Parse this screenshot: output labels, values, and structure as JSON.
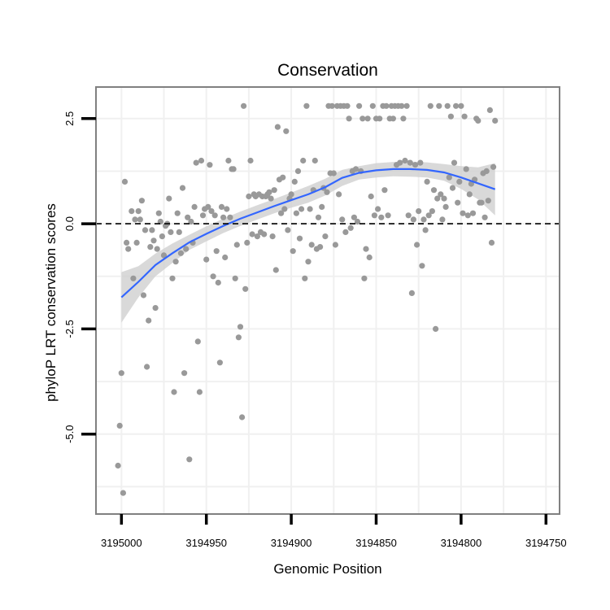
{
  "chart_data": {
    "type": "scatter",
    "title": "Conservation",
    "xlabel": "Genomic Position",
    "ylabel": "phyloP LRT conservation scores",
    "x_reversed": true,
    "xlim": [
      3195015,
      3194742
    ],
    "ylim": [
      -6.9,
      3.25
    ],
    "x_ticks": [
      3195000,
      3194950,
      3194900,
      3194850,
      3194800,
      3194750
    ],
    "x_tick_labels": [
      "3195000",
      "3194950",
      "3194900",
      "3194850",
      "3194800",
      "3194750"
    ],
    "y_ticks": [
      2.5,
      0,
      -2.5,
      -5
    ],
    "y_tick_labels": [
      "2.5",
      "0.0",
      "-2.5",
      "-5.0"
    ],
    "reference_line_y": 0,
    "grid": true,
    "colors": {
      "points": "#999999",
      "smooth": "#3366ff",
      "ribbon": "#d0d0d0",
      "panel_border": "#808080",
      "grid": "#f0f0f0"
    },
    "points": [
      [
        3195002,
        -5.75
      ],
      [
        3195001,
        -4.8
      ],
      [
        3195000,
        -3.55
      ],
      [
        3194999,
        -6.4
      ],
      [
        3194998,
        1.0
      ],
      [
        3194997,
        -0.45
      ],
      [
        3194996,
        -0.6
      ],
      [
        3194994,
        0.3
      ],
      [
        3194993,
        -1.3
      ],
      [
        3194992,
        0.1
      ],
      [
        3194991,
        -0.45
      ],
      [
        3194990,
        0.3
      ],
      [
        3194989,
        0.1
      ],
      [
        3194988,
        0.55
      ],
      [
        3194987,
        -1.7
      ],
      [
        3194986,
        -0.15
      ],
      [
        3194985,
        -3.4
      ],
      [
        3194984,
        -2.3
      ],
      [
        3194983,
        -0.55
      ],
      [
        3194982,
        -0.15
      ],
      [
        3194981,
        -0.4
      ],
      [
        3194980,
        -2.0
      ],
      [
        3194979,
        -0.6
      ],
      [
        3194978,
        0.25
      ],
      [
        3194977,
        0.05
      ],
      [
        3194976,
        -0.3
      ],
      [
        3194975,
        -0.75
      ],
      [
        3194974,
        -0.05
      ],
      [
        3194973,
        0.0
      ],
      [
        3194972,
        0.6
      ],
      [
        3194971,
        -0.2
      ],
      [
        3194970,
        -1.3
      ],
      [
        3194969,
        -4.0
      ],
      [
        3194968,
        -0.9
      ],
      [
        3194967,
        0.25
      ],
      [
        3194966,
        -0.2
      ],
      [
        3194965,
        -0.7
      ],
      [
        3194964,
        0.85
      ],
      [
        3194963,
        -3.55
      ],
      [
        3194962,
        -0.6
      ],
      [
        3194961,
        0.15
      ],
      [
        3194960,
        -5.6
      ],
      [
        3194959,
        0.05
      ],
      [
        3194958,
        -0.45
      ],
      [
        3194957,
        0.4
      ],
      [
        3194956,
        1.45
      ],
      [
        3194955,
        -2.8
      ],
      [
        3194954,
        -4.0
      ],
      [
        3194953,
        1.5
      ],
      [
        3194952,
        0.2
      ],
      [
        3194951,
        0.35
      ],
      [
        3194950,
        -0.85
      ],
      [
        3194949,
        0.4
      ],
      [
        3194948,
        1.4
      ],
      [
        3194947,
        0.3
      ],
      [
        3194946,
        -1.25
      ],
      [
        3194945,
        0.2
      ],
      [
        3194944,
        -0.65
      ],
      [
        3194943,
        -1.4
      ],
      [
        3194942,
        -3.3
      ],
      [
        3194941,
        0.4
      ],
      [
        3194940,
        0.15
      ],
      [
        3194939,
        -0.8
      ],
      [
        3194938,
        0.35
      ],
      [
        3194937,
        1.5
      ],
      [
        3194936,
        0.15
      ],
      [
        3194935,
        1.3
      ],
      [
        3194934,
        1.3
      ],
      [
        3194933,
        -1.3
      ],
      [
        3194932,
        -0.5
      ],
      [
        3194931,
        -2.7
      ],
      [
        3194930,
        -2.45
      ],
      [
        3194929,
        -4.6
      ],
      [
        3194928,
        2.8
      ],
      [
        3194927,
        -1.55
      ],
      [
        3194926,
        -0.45
      ],
      [
        3194925,
        0.65
      ],
      [
        3194924,
        1.5
      ],
      [
        3194923,
        -0.25
      ],
      [
        3194922,
        0.7
      ],
      [
        3194921,
        0.65
      ],
      [
        3194920,
        -0.3
      ],
      [
        3194919,
        0.7
      ],
      [
        3194918,
        -0.2
      ],
      [
        3194917,
        0.65
      ],
      [
        3194916,
        -0.25
      ],
      [
        3194915,
        0.65
      ],
      [
        3194914,
        0.7
      ],
      [
        3194913,
        0.75
      ],
      [
        3194912,
        0.6
      ],
      [
        3194911,
        -0.3
      ],
      [
        3194910,
        0.8
      ],
      [
        3194909,
        -1.1
      ],
      [
        3194908,
        2.3
      ],
      [
        3194907,
        1.05
      ],
      [
        3194906,
        0.25
      ],
      [
        3194905,
        1.1
      ],
      [
        3194904,
        0.35
      ],
      [
        3194903,
        2.2
      ],
      [
        3194902,
        -0.15
      ],
      [
        3194901,
        0.6
      ],
      [
        3194900,
        0.7
      ],
      [
        3194899,
        -0.65
      ],
      [
        3194898,
        1.0
      ],
      [
        3194897,
        0.25
      ],
      [
        3194896,
        1.25
      ],
      [
        3194895,
        -0.35
      ],
      [
        3194894,
        0.35
      ],
      [
        3194893,
        1.5
      ],
      [
        3194892,
        -1.3
      ],
      [
        3194891,
        2.8
      ],
      [
        3194890,
        -0.9
      ],
      [
        3194889,
        0.35
      ],
      [
        3194888,
        -0.5
      ],
      [
        3194887,
        0.8
      ],
      [
        3194886,
        1.5
      ],
      [
        3194885,
        -0.6
      ],
      [
        3194884,
        0.15
      ],
      [
        3194883,
        -0.55
      ],
      [
        3194882,
        0.4
      ],
      [
        3194881,
        0.85
      ],
      [
        3194880,
        -0.3
      ],
      [
        3194879,
        0.75
      ],
      [
        3194878,
        2.8
      ],
      [
        3194877,
        1.2
      ],
      [
        3194876,
        2.8
      ],
      [
        3194875,
        1.2
      ],
      [
        3194874,
        -0.5
      ],
      [
        3194873,
        2.8
      ],
      [
        3194872,
        0.7
      ],
      [
        3194871,
        2.8
      ],
      [
        3194870,
        0.1
      ],
      [
        3194869,
        2.8
      ],
      [
        3194868,
        -0.2
      ],
      [
        3194867,
        2.8
      ],
      [
        3194866,
        2.5
      ],
      [
        3194865,
        -0.1
      ],
      [
        3194864,
        1.25
      ],
      [
        3194863,
        0.15
      ],
      [
        3194862,
        1.3
      ],
      [
        3194861,
        0.05
      ],
      [
        3194860,
        2.8
      ],
      [
        3194859,
        1.25
      ],
      [
        3194858,
        2.5
      ],
      [
        3194857,
        -1.3
      ],
      [
        3194856,
        -0.6
      ],
      [
        3194855,
        2.5
      ],
      [
        3194854,
        -0.8
      ],
      [
        3194853,
        0.65
      ],
      [
        3194852,
        2.8
      ],
      [
        3194851,
        0.2
      ],
      [
        3194850,
        2.5
      ],
      [
        3194849,
        0.35
      ],
      [
        3194848,
        2.5
      ],
      [
        3194847,
        0.15
      ],
      [
        3194846,
        2.8
      ],
      [
        3194845,
        0.8
      ],
      [
        3194844,
        2.8
      ],
      [
        3194843,
        0.2
      ],
      [
        3194842,
        2.5
      ],
      [
        3194841,
        2.8
      ],
      [
        3194840,
        2.5
      ],
      [
        3194839,
        2.8
      ],
      [
        3194838,
        1.4
      ],
      [
        3194837,
        2.8
      ],
      [
        3194836,
        1.45
      ],
      [
        3194835,
        2.8
      ],
      [
        3194834,
        2.5
      ],
      [
        3194833,
        1.5
      ],
      [
        3194832,
        2.8
      ],
      [
        3194831,
        0.2
      ],
      [
        3194830,
        1.45
      ],
      [
        3194829,
        -1.65
      ],
      [
        3194828,
        0.1
      ],
      [
        3194827,
        1.4
      ],
      [
        3194826,
        -0.5
      ],
      [
        3194825,
        0.3
      ],
      [
        3194824,
        1.45
      ],
      [
        3194823,
        -1.0
      ],
      [
        3194822,
        0.1
      ],
      [
        3194821,
        -0.15
      ],
      [
        3194820,
        1.0
      ],
      [
        3194819,
        0.2
      ],
      [
        3194818,
        2.8
      ],
      [
        3194817,
        0.3
      ],
      [
        3194816,
        0.8
      ],
      [
        3194815,
        -2.5
      ],
      [
        3194814,
        0.6
      ],
      [
        3194813,
        2.8
      ],
      [
        3194812,
        0.7
      ],
      [
        3194811,
        0.1
      ],
      [
        3194810,
        0.6
      ],
      [
        3194809,
        0.4
      ],
      [
        3194808,
        2.8
      ],
      [
        3194807,
        1.1
      ],
      [
        3194806,
        2.55
      ],
      [
        3194805,
        0.85
      ],
      [
        3194804,
        1.45
      ],
      [
        3194803,
        2.8
      ],
      [
        3194802,
        0.5
      ],
      [
        3194801,
        1.0
      ],
      [
        3194800,
        2.8
      ],
      [
        3194799,
        0.25
      ],
      [
        3194798,
        2.55
      ],
      [
        3194797,
        1.3
      ],
      [
        3194796,
        0.2
      ],
      [
        3194795,
        0.7
      ],
      [
        3194794,
        0.95
      ],
      [
        3194793,
        0.25
      ],
      [
        3194792,
        1.05
      ],
      [
        3194791,
        2.5
      ],
      [
        3194790,
        2.45
      ],
      [
        3194789,
        0.5
      ],
      [
        3194788,
        0.5
      ],
      [
        3194787,
        1.2
      ],
      [
        3194786,
        0.15
      ],
      [
        3194785,
        1.25
      ],
      [
        3194784,
        0.55
      ],
      [
        3194783,
        2.7
      ],
      [
        3194782,
        -0.45
      ],
      [
        3194781,
        1.35
      ],
      [
        3194780,
        2.45
      ]
    ],
    "smooth": {
      "x": [
        3195000,
        3194990,
        3194980,
        3194970,
        3194960,
        3194950,
        3194940,
        3194930,
        3194920,
        3194910,
        3194900,
        3194890,
        3194880,
        3194870,
        3194860,
        3194850,
        3194840,
        3194830,
        3194820,
        3194810,
        3194800,
        3194790,
        3194780
      ],
      "fit": [
        -1.75,
        -1.38,
        -0.98,
        -0.7,
        -0.44,
        -0.24,
        -0.05,
        0.12,
        0.27,
        0.42,
        0.56,
        0.7,
        0.87,
        1.09,
        1.21,
        1.27,
        1.3,
        1.3,
        1.28,
        1.22,
        1.1,
        0.96,
        0.82
      ],
      "lower": [
        -2.35,
        -1.75,
        -1.25,
        -0.93,
        -0.62,
        -0.42,
        -0.22,
        -0.05,
        0.1,
        0.25,
        0.38,
        0.5,
        0.67,
        0.9,
        1.05,
        1.1,
        1.13,
        1.12,
        1.1,
        1.02,
        0.83,
        0.58,
        0.2
      ],
      "upper": [
        -1.15,
        -1.01,
        -0.71,
        -0.47,
        -0.26,
        -0.06,
        0.12,
        0.29,
        0.44,
        0.59,
        0.74,
        0.9,
        1.07,
        1.28,
        1.37,
        1.44,
        1.47,
        1.48,
        1.46,
        1.42,
        1.37,
        1.34,
        1.44
      ]
    }
  }
}
